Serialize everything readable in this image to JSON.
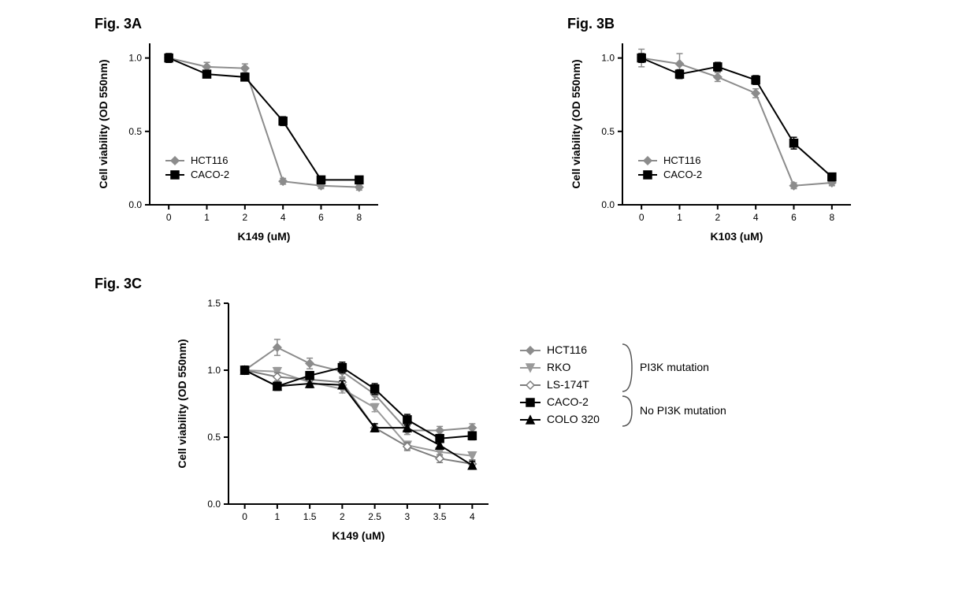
{
  "figA": {
    "title": "Fig. 3A",
    "type": "line",
    "xlabel": "K149 (uM)",
    "ylabel": "Cell viability (OD 550nm)",
    "xticks": [
      0,
      1,
      2,
      4,
      6,
      8
    ],
    "yticks": [
      0.0,
      0.5,
      1.0
    ],
    "xlim": [
      0,
      8
    ],
    "ylim": [
      0,
      1.1
    ],
    "axis_color": "#000000",
    "grid_color": "#ffffff",
    "label_fontsize": 14,
    "tick_fontsize": 12,
    "legend_pos": "inside-lower-left",
    "series": [
      {
        "name": "HCT116",
        "color": "#8c8c8c",
        "marker": "diamond",
        "x": [
          0,
          1,
          2,
          4,
          6,
          8
        ],
        "y": [
          1.0,
          0.94,
          0.93,
          0.16,
          0.13,
          0.12
        ],
        "err": [
          0.03,
          0.03,
          0.03,
          0.02,
          0.02,
          0.02
        ]
      },
      {
        "name": "CACO-2",
        "color": "#000000",
        "marker": "square",
        "x": [
          0,
          1,
          2,
          4,
          6,
          8
        ],
        "y": [
          1.0,
          0.89,
          0.87,
          0.57,
          0.17,
          0.17
        ],
        "err": [
          0.03,
          0.02,
          0.02,
          0.03,
          0.02,
          0.02
        ]
      }
    ]
  },
  "figB": {
    "title": "Fig. 3B",
    "type": "line",
    "xlabel": "K103 (uM)",
    "ylabel": "Cell viability (OD 550nm)",
    "xticks": [
      0,
      1,
      2,
      4,
      6,
      8
    ],
    "yticks": [
      0.0,
      0.5,
      1.0
    ],
    "xlim": [
      0,
      8
    ],
    "ylim": [
      0,
      1.1
    ],
    "axis_color": "#000000",
    "grid_color": "#ffffff",
    "label_fontsize": 14,
    "tick_fontsize": 12,
    "legend_pos": "inside-lower-left",
    "series": [
      {
        "name": "HCT116",
        "color": "#8c8c8c",
        "marker": "diamond",
        "x": [
          0,
          1,
          2,
          4,
          6,
          8
        ],
        "y": [
          1.0,
          0.96,
          0.87,
          0.76,
          0.13,
          0.15
        ],
        "err": [
          0.06,
          0.07,
          0.03,
          0.03,
          0.02,
          0.02
        ]
      },
      {
        "name": "CACO-2",
        "color": "#000000",
        "marker": "square",
        "x": [
          0,
          1,
          2,
          4,
          6,
          8
        ],
        "y": [
          1.0,
          0.89,
          0.94,
          0.85,
          0.42,
          0.19
        ],
        "err": [
          0.03,
          0.03,
          0.03,
          0.03,
          0.04,
          0.02
        ]
      }
    ]
  },
  "figC": {
    "title": "Fig. 3C",
    "type": "line",
    "xlabel": "K149 (uM)",
    "ylabel": "Cell viability (OD 550nm)",
    "xticks": [
      0,
      1,
      1.5,
      2,
      2.5,
      3,
      3.5,
      4
    ],
    "yticks": [
      0.0,
      0.5,
      1.0,
      1.5
    ],
    "xlim": [
      0,
      4
    ],
    "ylim": [
      0,
      1.5
    ],
    "axis_color": "#000000",
    "grid_color": "#ffffff",
    "label_fontsize": 14,
    "tick_fontsize": 12,
    "legend_pos": "outside-right",
    "groups": [
      {
        "label": "PI3K mutation",
        "items": [
          "HCT116",
          "RKO",
          "LS-174T"
        ]
      },
      {
        "label": "No PI3K mutation",
        "items": [
          "CACO-2",
          "COLO 320"
        ]
      }
    ],
    "series": [
      {
        "name": "HCT116",
        "color": "#8c8c8c",
        "marker": "diamond",
        "x": [
          0,
          1,
          1.5,
          2,
          2.5,
          3,
          3.5,
          4
        ],
        "y": [
          1.0,
          1.17,
          1.05,
          0.99,
          0.82,
          0.55,
          0.55,
          0.57
        ],
        "err": [
          0.03,
          0.06,
          0.04,
          0.04,
          0.04,
          0.03,
          0.03,
          0.03
        ]
      },
      {
        "name": "RKO",
        "color": "#9a9a9a",
        "marker": "triangle-down",
        "x": [
          0,
          1,
          1.5,
          2,
          2.5,
          3,
          3.5,
          4
        ],
        "y": [
          1.0,
          0.99,
          0.91,
          0.86,
          0.72,
          0.44,
          0.39,
          0.36
        ],
        "err": [
          0.03,
          0.03,
          0.03,
          0.03,
          0.03,
          0.03,
          0.03,
          0.03
        ]
      },
      {
        "name": "LS-174T",
        "color": "#7d7d7d",
        "marker": "diamond-open",
        "x": [
          0,
          1,
          1.5,
          2,
          2.5,
          3,
          3.5,
          4
        ],
        "y": [
          1.0,
          0.95,
          0.93,
          0.91,
          0.57,
          0.43,
          0.34,
          0.3
        ],
        "err": [
          0.03,
          0.03,
          0.03,
          0.03,
          0.03,
          0.03,
          0.03,
          0.03
        ]
      },
      {
        "name": "CACO-2",
        "color": "#000000",
        "marker": "square",
        "x": [
          0,
          1,
          1.5,
          2,
          2.5,
          3,
          3.5,
          4
        ],
        "y": [
          1.0,
          0.88,
          0.96,
          1.02,
          0.86,
          0.63,
          0.49,
          0.51
        ],
        "err": [
          0.03,
          0.03,
          0.03,
          0.04,
          0.04,
          0.04,
          0.03,
          0.03
        ]
      },
      {
        "name": "COLO 320",
        "color": "#000000",
        "marker": "triangle-up",
        "x": [
          0,
          1,
          1.5,
          2,
          2.5,
          3,
          3.5,
          4
        ],
        "y": [
          1.0,
          0.88,
          0.9,
          0.89,
          0.57,
          0.57,
          0.44,
          0.29
        ],
        "err": [
          0.03,
          0.03,
          0.03,
          0.03,
          0.03,
          0.03,
          0.03,
          0.03
        ]
      }
    ]
  }
}
